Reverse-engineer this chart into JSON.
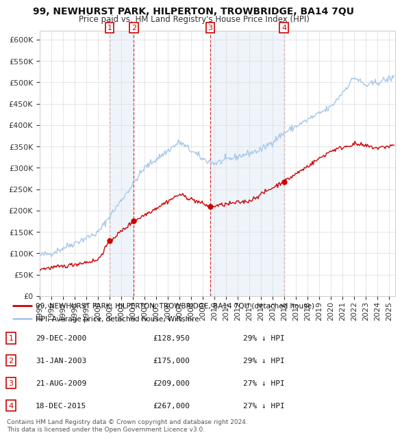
{
  "title": "99, NEWHURST PARK, HILPERTON, TROWBRIDGE, BA14 7QU",
  "subtitle": "Price paid vs. HM Land Registry's House Price Index (HPI)",
  "hpi_color": "#a8c8e8",
  "price_color": "#cc0000",
  "shade_color": "#c8ddf0",
  "background_color": "#ffffff",
  "plot_bg_color": "#ffffff",
  "grid_color": "#e0e0e0",
  "ylim": [
    0,
    620000
  ],
  "yticks": [
    0,
    50000,
    100000,
    150000,
    200000,
    250000,
    300000,
    350000,
    400000,
    450000,
    500000,
    550000,
    600000
  ],
  "ytick_labels": [
    "£0",
    "£50K",
    "£100K",
    "£150K",
    "£200K",
    "£250K",
    "£300K",
    "£350K",
    "£400K",
    "£450K",
    "£500K",
    "£550K",
    "£600K"
  ],
  "transactions": [
    {
      "num": 1,
      "date": "29-DEC-2000",
      "price": 128950,
      "price_str": "£128,950",
      "pct": "29% ↓ HPI",
      "year": 2000.99
    },
    {
      "num": 2,
      "date": "31-JAN-2003",
      "price": 175000,
      "price_str": "£175,000",
      "pct": "29% ↓ HPI",
      "year": 2003.08
    },
    {
      "num": 3,
      "date": "21-AUG-2009",
      "price": 209000,
      "price_str": "£209,000",
      "pct": "27% ↓ HPI",
      "year": 2009.64
    },
    {
      "num": 4,
      "date": "18-DEC-2015",
      "price": 267000,
      "price_str": "£267,000",
      "pct": "27% ↓ HPI",
      "year": 2015.96
    }
  ],
  "legend_label_price": "99, NEWHURST PARK, HILPERTON, TROWBRIDGE, BA14 7QU (detached house)",
  "legend_label_hpi": "HPI: Average price, detached house, Wiltshire",
  "footer": "Contains HM Land Registry data © Crown copyright and database right 2024.\nThis data is licensed under the Open Government Licence v3.0.",
  "xmin": 1995,
  "xmax": 2025.5,
  "xtick_years": [
    1995,
    1996,
    1997,
    1998,
    1999,
    2000,
    2001,
    2002,
    2003,
    2004,
    2005,
    2006,
    2007,
    2008,
    2009,
    2010,
    2011,
    2012,
    2013,
    2014,
    2015,
    2016,
    2017,
    2018,
    2019,
    2020,
    2021,
    2022,
    2023,
    2024,
    2025
  ]
}
